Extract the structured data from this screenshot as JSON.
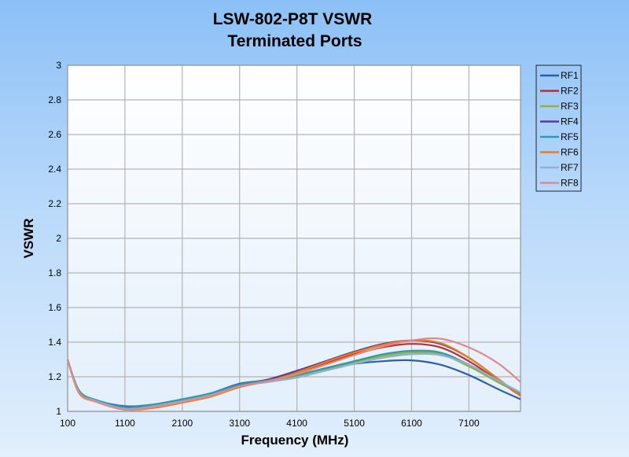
{
  "chart_data": {
    "type": "line",
    "title": "LSW-802-P8T VSWR",
    "subtitle": "Terminated Ports",
    "xlabel": "Frequency (MHz)",
    "ylabel": "VSWR",
    "xlim": [
      100,
      8000
    ],
    "ylim": [
      1,
      3
    ],
    "xticks": [
      100,
      1100,
      2100,
      3100,
      4100,
      5100,
      6100,
      7100
    ],
    "yticks": [
      1,
      1.2,
      1.4,
      1.6,
      1.8,
      2,
      2.2,
      2.4,
      2.6,
      2.8,
      3
    ],
    "ytick_labels": [
      "1",
      "1.2",
      "1.4",
      "1.6",
      "1.8",
      "2",
      "2.2",
      "2.4",
      "2.6",
      "2.8",
      "3"
    ],
    "grid": true,
    "legend": "right",
    "x": [
      100,
      300,
      600,
      1100,
      1600,
      2100,
      2600,
      3100,
      3600,
      4100,
      4600,
      5100,
      5600,
      6100,
      6600,
      7100,
      7600,
      8000
    ],
    "series": [
      {
        "name": "RF1",
        "color": "#2c5fa8",
        "values": [
          1.3,
          1.12,
          1.065,
          1.03,
          1.04,
          1.07,
          1.105,
          1.16,
          1.18,
          1.21,
          1.245,
          1.275,
          1.29,
          1.295,
          1.27,
          1.21,
          1.13,
          1.07
        ]
      },
      {
        "name": "RF2",
        "color": "#b8312f",
        "values": [
          1.3,
          1.11,
          1.06,
          1.02,
          1.03,
          1.06,
          1.1,
          1.15,
          1.18,
          1.225,
          1.28,
          1.33,
          1.37,
          1.39,
          1.37,
          1.29,
          1.18,
          1.09
        ]
      },
      {
        "name": "RF3",
        "color": "#8db33a",
        "values": [
          1.3,
          1.115,
          1.06,
          1.02,
          1.035,
          1.065,
          1.1,
          1.15,
          1.175,
          1.205,
          1.245,
          1.285,
          1.32,
          1.34,
          1.33,
          1.26,
          1.17,
          1.1
        ]
      },
      {
        "name": "RF4",
        "color": "#5e3d8f",
        "values": [
          1.3,
          1.11,
          1.06,
          1.02,
          1.03,
          1.06,
          1.1,
          1.155,
          1.185,
          1.235,
          1.29,
          1.345,
          1.39,
          1.41,
          1.39,
          1.31,
          1.19,
          1.09
        ]
      },
      {
        "name": "RF5",
        "color": "#2a9bb0",
        "values": [
          1.3,
          1.12,
          1.065,
          1.025,
          1.04,
          1.07,
          1.105,
          1.155,
          1.18,
          1.21,
          1.25,
          1.29,
          1.33,
          1.35,
          1.34,
          1.27,
          1.18,
          1.1
        ]
      },
      {
        "name": "RF6",
        "color": "#ea7b1e",
        "values": [
          1.3,
          1.105,
          1.055,
          1.01,
          1.02,
          1.05,
          1.085,
          1.14,
          1.175,
          1.225,
          1.285,
          1.34,
          1.385,
          1.41,
          1.395,
          1.31,
          1.19,
          1.09
        ]
      },
      {
        "name": "RF7",
        "color": "#94aed6",
        "values": [
          1.3,
          1.11,
          1.06,
          1.015,
          1.03,
          1.06,
          1.095,
          1.145,
          1.17,
          1.195,
          1.235,
          1.275,
          1.31,
          1.33,
          1.325,
          1.27,
          1.18,
          1.11
        ]
      },
      {
        "name": "RF8",
        "color": "#de8a86",
        "values": [
          1.3,
          1.11,
          1.055,
          1.01,
          1.025,
          1.055,
          1.09,
          1.145,
          1.175,
          1.215,
          1.27,
          1.325,
          1.375,
          1.41,
          1.42,
          1.37,
          1.28,
          1.17
        ]
      }
    ]
  }
}
